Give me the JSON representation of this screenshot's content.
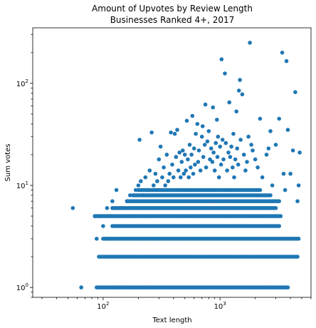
{
  "chart_data": {
    "type": "scatter",
    "title": "Amount of Upvotes by Review Length",
    "subtitle": "Businesses Ranked 4+, 2017",
    "xlabel": "Text length",
    "ylabel": "Sum votes",
    "xscale": "log",
    "yscale": "log",
    "xlim": [
      25,
      6000
    ],
    "ylim": [
      0.8,
      350
    ],
    "grid": false,
    "marker_color": "#1f77b4",
    "x_ticks": [
      {
        "value": 100,
        "base": "10",
        "exp": "2"
      },
      {
        "value": 1000,
        "base": "10",
        "exp": "3"
      }
    ],
    "y_ticks": [
      {
        "value": 1,
        "base": "10",
        "exp": "0"
      },
      {
        "value": 10,
        "base": "10",
        "exp": "1"
      },
      {
        "value": 100,
        "base": "10",
        "exp": "2"
      }
    ],
    "bands": [
      {
        "y": 1,
        "xmin": 88,
        "xmax": 3800
      },
      {
        "y": 2,
        "xmin": 92,
        "xmax": 4600
      },
      {
        "y": 3,
        "xmin": 100,
        "xmax": 4700
      },
      {
        "y": 4,
        "xmin": 120,
        "xmax": 3200
      },
      {
        "y": 5,
        "xmin": 85,
        "xmax": 3300
      },
      {
        "y": 6,
        "xmin": 120,
        "xmax": 3000
      },
      {
        "y": 7,
        "xmin": 160,
        "xmax": 3200
      },
      {
        "y": 8,
        "xmin": 180,
        "xmax": 2700
      },
      {
        "y": 9,
        "xmin": 200,
        "xmax": 2200
      }
    ],
    "points": [
      [
        55,
        6
      ],
      [
        65,
        1
      ],
      [
        85,
        5
      ],
      [
        88,
        3
      ],
      [
        95,
        5
      ],
      [
        100,
        4
      ],
      [
        105,
        3
      ],
      [
        108,
        6
      ],
      [
        115,
        5
      ],
      [
        120,
        7
      ],
      [
        130,
        9
      ],
      [
        135,
        1
      ],
      [
        140,
        5
      ],
      [
        150,
        6
      ],
      [
        160,
        7
      ],
      [
        170,
        8
      ],
      [
        180,
        5
      ],
      [
        190,
        9
      ],
      [
        200,
        10
      ],
      [
        205,
        28
      ],
      [
        210,
        11
      ],
      [
        220,
        8
      ],
      [
        230,
        12
      ],
      [
        240,
        9
      ],
      [
        250,
        14
      ],
      [
        260,
        33
      ],
      [
        270,
        10
      ],
      [
        280,
        13
      ],
      [
        290,
        11
      ],
      [
        300,
        18
      ],
      [
        310,
        24
      ],
      [
        320,
        12
      ],
      [
        330,
        15
      ],
      [
        340,
        10
      ],
      [
        350,
        20
      ],
      [
        360,
        11
      ],
      [
        370,
        13
      ],
      [
        380,
        33
      ],
      [
        390,
        16
      ],
      [
        400,
        12
      ],
      [
        410,
        32
      ],
      [
        420,
        19
      ],
      [
        430,
        35
      ],
      [
        440,
        14
      ],
      [
        450,
        21
      ],
      [
        460,
        12
      ],
      [
        470,
        17
      ],
      [
        480,
        22
      ],
      [
        490,
        13
      ],
      [
        500,
        20
      ],
      [
        510,
        14
      ],
      [
        520,
        43
      ],
      [
        530,
        18
      ],
      [
        540,
        12
      ],
      [
        550,
        25
      ],
      [
        560,
        15
      ],
      [
        570,
        20
      ],
      [
        580,
        48
      ],
      [
        590,
        13
      ],
      [
        600,
        23
      ],
      [
        610,
        16
      ],
      [
        620,
        32
      ],
      [
        640,
        40
      ],
      [
        650,
        17
      ],
      [
        660,
        22
      ],
      [
        680,
        14
      ],
      [
        700,
        30
      ],
      [
        710,
        38
      ],
      [
        720,
        19
      ],
      [
        740,
        25
      ],
      [
        750,
        62
      ],
      [
        760,
        15
      ],
      [
        780,
        27
      ],
      [
        800,
        34
      ],
      [
        820,
        18
      ],
      [
        840,
        23
      ],
      [
        860,
        17
      ],
      [
        870,
        58
      ],
      [
        880,
        21
      ],
      [
        900,
        14
      ],
      [
        920,
        26
      ],
      [
        940,
        44
      ],
      [
        950,
        19
      ],
      [
        960,
        30
      ],
      [
        980,
        12
      ],
      [
        1000,
        24
      ],
      [
        1020,
        16
      ],
      [
        1030,
        172
      ],
      [
        1050,
        28
      ],
      [
        1070,
        18
      ],
      [
        1100,
        125
      ],
      [
        1120,
        26
      ],
      [
        1150,
        14
      ],
      [
        1180,
        21
      ],
      [
        1200,
        65
      ],
      [
        1220,
        19
      ],
      [
        1250,
        24
      ],
      [
        1280,
        15
      ],
      [
        1300,
        32
      ],
      [
        1320,
        12
      ],
      [
        1350,
        18
      ],
      [
        1380,
        53
      ],
      [
        1400,
        23
      ],
      [
        1430,
        16
      ],
      [
        1450,
        85
      ],
      [
        1480,
        108
      ],
      [
        1500,
        28
      ],
      [
        1550,
        78
      ],
      [
        1600,
        20
      ],
      [
        1650,
        14
      ],
      [
        1700,
        17
      ],
      [
        1750,
        30
      ],
      [
        1800,
        250
      ],
      [
        1850,
        25
      ],
      [
        1900,
        22
      ],
      [
        2000,
        18
      ],
      [
        2100,
        15
      ],
      [
        2200,
        45
      ],
      [
        2300,
        12
      ],
      [
        2500,
        20
      ],
      [
        2600,
        23
      ],
      [
        2700,
        34
      ],
      [
        2800,
        10
      ],
      [
        3000,
        25
      ],
      [
        3200,
        45
      ],
      [
        3400,
        200
      ],
      [
        3500,
        13
      ],
      [
        3600,
        9
      ],
      [
        3700,
        165
      ],
      [
        3800,
        35
      ],
      [
        4000,
        13
      ],
      [
        4200,
        22
      ],
      [
        4400,
        82
      ],
      [
        4600,
        7
      ],
      [
        4700,
        10
      ],
      [
        4800,
        21
      ]
    ]
  }
}
